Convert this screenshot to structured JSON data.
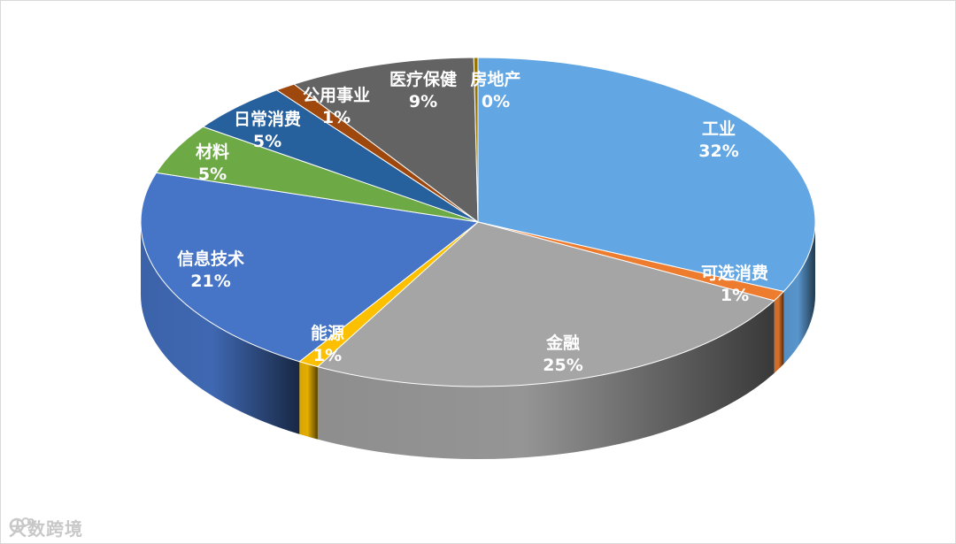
{
  "chart_data": {
    "type": "pie",
    "style": "3d",
    "title": "",
    "slices": [
      {
        "label": "工业",
        "value": 32,
        "pct_text": "32%",
        "color": "#62a6e3"
      },
      {
        "label": "可选消费",
        "value": 1,
        "pct_text": "1%",
        "color": "#ee7c2e"
      },
      {
        "label": "金融",
        "value": 25,
        "pct_text": "25%",
        "color": "#a5a5a5"
      },
      {
        "label": "能源",
        "value": 1,
        "pct_text": "1%",
        "color": "#fcc000"
      },
      {
        "label": "信息技术",
        "value": 21,
        "pct_text": "21%",
        "color": "#4674c6"
      },
      {
        "label": "材料",
        "value": 5,
        "pct_text": "5%",
        "color": "#6daa45"
      },
      {
        "label": "日常消费",
        "value": 5,
        "pct_text": "5%",
        "color": "#26609d"
      },
      {
        "label": "公用事业",
        "value": 1,
        "pct_text": "1%",
        "color": "#9e480e"
      },
      {
        "label": "医疗保健",
        "value": 9,
        "pct_text": "9%",
        "color": "#636363"
      },
      {
        "label": "房地产",
        "value": 0.2,
        "pct_text": "0%",
        "color": "#997400"
      }
    ]
  },
  "watermark": {
    "text": "大数跨境",
    "icon": "brand-logo-icon"
  }
}
